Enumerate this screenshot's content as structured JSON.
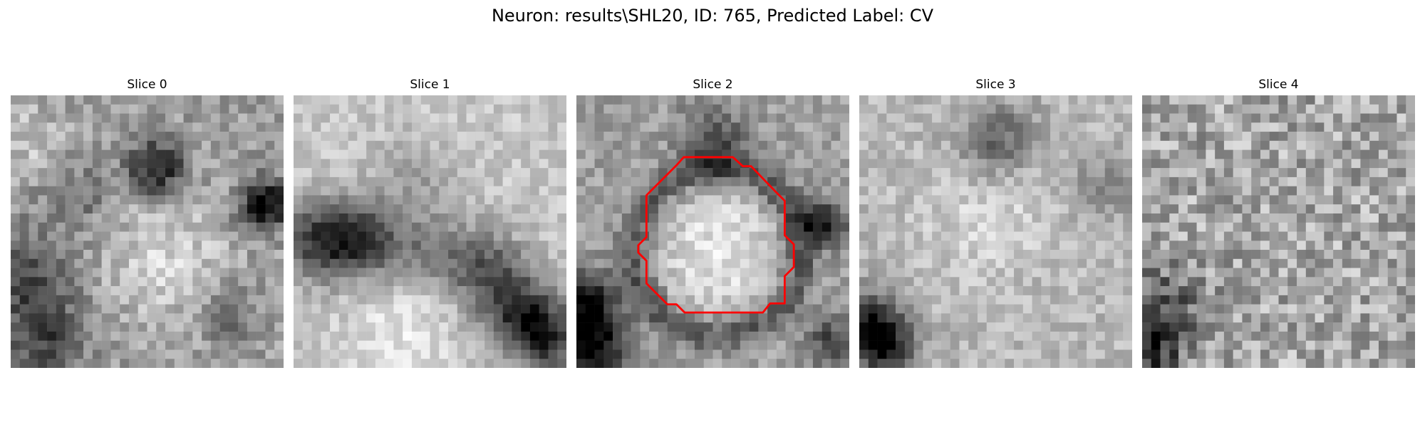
{
  "figure": {
    "title": "Neuron: results\\SHL20, ID: 765, Predicted Label: CV"
  },
  "panels": [
    {
      "title": "Slice 0",
      "style": "blobby-mid",
      "seed": 11
    },
    {
      "title": "Slice 1",
      "style": "bright-dark-band",
      "seed": 23
    },
    {
      "title": "Slice 2",
      "style": "ring-cell",
      "seed": 37,
      "contour": true
    },
    {
      "title": "Slice 3",
      "style": "soft-bright",
      "seed": 41
    },
    {
      "title": "Slice 4",
      "style": "noisy",
      "seed": 59
    }
  ],
  "contour_color": "#ff0000",
  "colormap": "gray"
}
